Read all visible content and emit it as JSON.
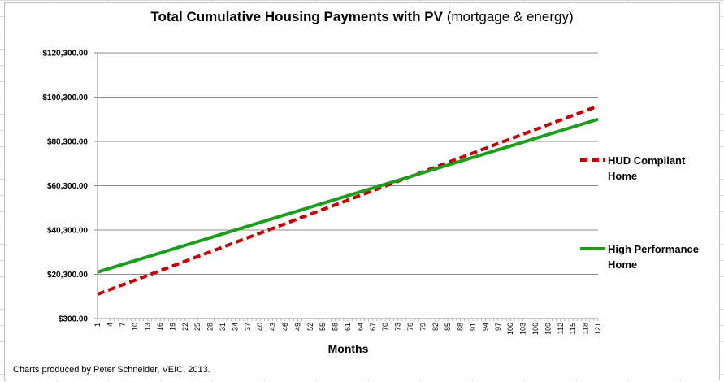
{
  "chart_data": {
    "type": "line",
    "title": "Total Cumulative Housing Payments  with PV",
    "title_suffix": "(mortgage & energy)",
    "xlabel": "Months",
    "ylabel": "",
    "y_ticks": [
      "$300.00",
      "$20,300.00",
      "$40,300.00",
      "$60,300.00",
      "$80,300.00",
      "$100,300.00",
      "$120,300.00"
    ],
    "y_tick_values": [
      300,
      20300,
      40300,
      60300,
      80300,
      100300,
      120300
    ],
    "ylim": [
      300,
      120300
    ],
    "x_ticks": [
      "1",
      "4",
      "7",
      "10",
      "13",
      "16",
      "19",
      "22",
      "25",
      "28",
      "31",
      "34",
      "37",
      "40",
      "43",
      "46",
      "49",
      "52",
      "55",
      "58",
      "61",
      "64",
      "67",
      "70",
      "73",
      "76",
      "79",
      "82",
      "85",
      "88",
      "91",
      "94",
      "97",
      "100",
      "103",
      "106",
      "109",
      "112",
      "115",
      "118",
      "121"
    ],
    "xlim": [
      1,
      121
    ],
    "grid": "horizontal",
    "legend_position": "right",
    "series": [
      {
        "name": "HUD Compliant\nHome",
        "color": "#c00000",
        "style": "dashed",
        "x": [
          1,
          121
        ],
        "y": [
          11300,
          96300
        ]
      },
      {
        "name": "High Performance\nHome",
        "color": "#1c9e1c",
        "style": "solid",
        "x": [
          1,
          121
        ],
        "y": [
          21300,
          90300
        ]
      }
    ],
    "footer": "Charts  produced by Peter Schneider, VEIC, 2013."
  }
}
